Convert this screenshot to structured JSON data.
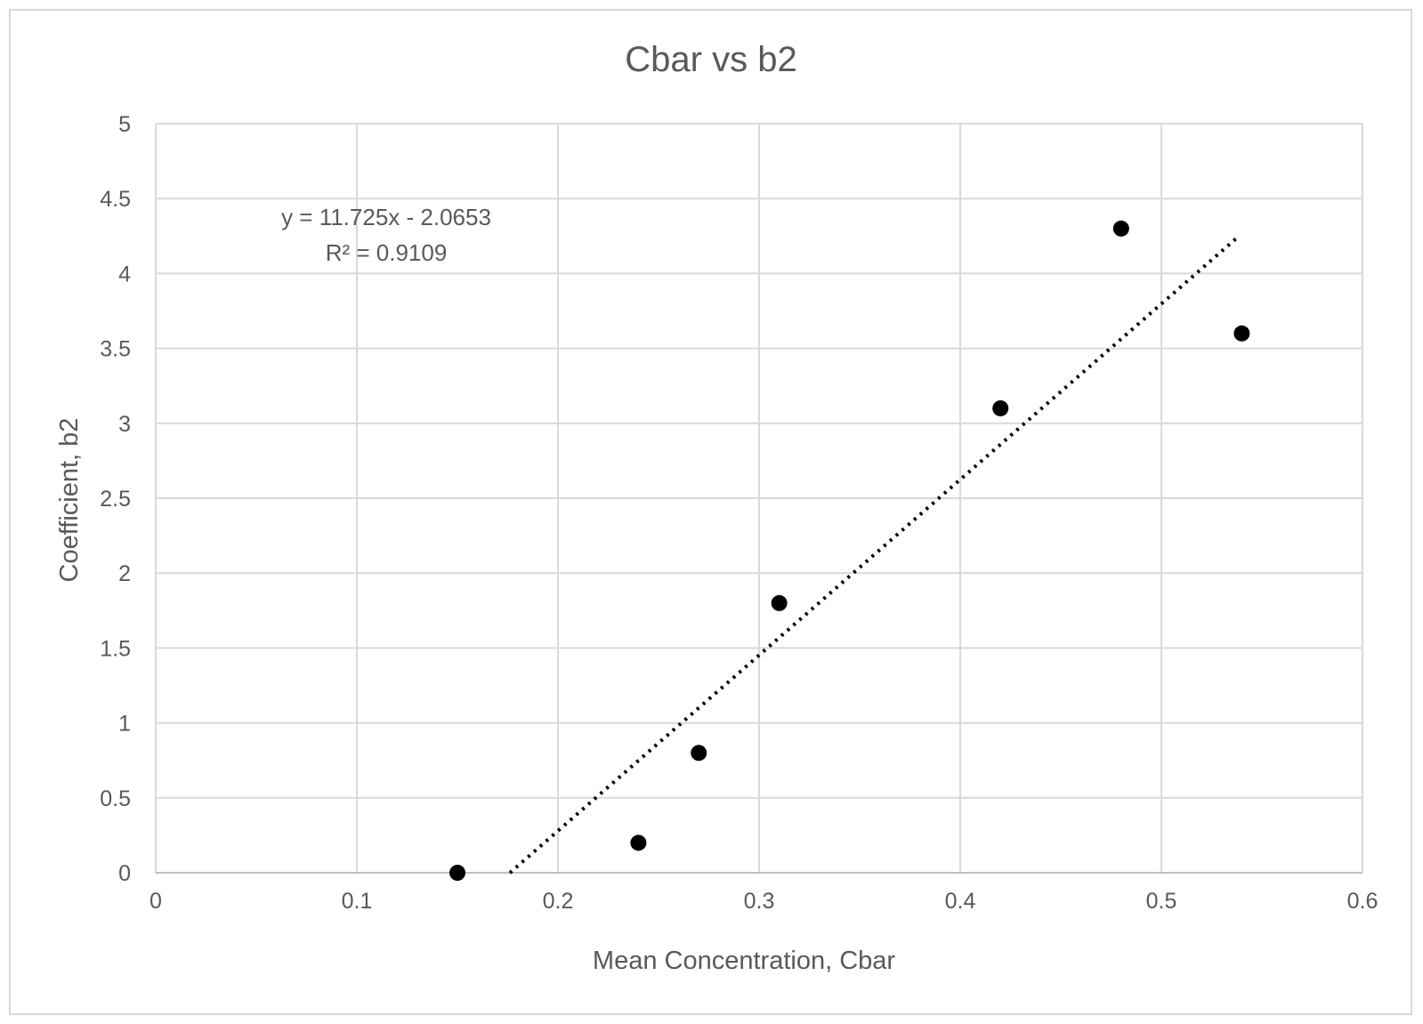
{
  "chart_data": {
    "type": "scatter",
    "title": "Cbar vs b2",
    "xlabel": "Mean Concentration, Cbar",
    "ylabel": "Coefficient, b2",
    "xlim": [
      0,
      0.6
    ],
    "ylim": [
      0,
      5
    ],
    "xticks": [
      "0",
      "0.1",
      "0.2",
      "0.3",
      "0.4",
      "0.5",
      "0.6"
    ],
    "yticks": [
      "0",
      "0.5",
      "1",
      "1.5",
      "2",
      "2.5",
      "3",
      "3.5",
      "4",
      "4.5",
      "5"
    ],
    "grid": true,
    "legend": "none",
    "series": [
      {
        "x": [
          0.15,
          0.24,
          0.27,
          0.31,
          0.42,
          0.48,
          0.54
        ],
        "y": [
          0.0,
          0.2,
          0.8,
          1.8,
          3.1,
          4.3,
          3.6
        ],
        "marker_color": "#000000"
      }
    ],
    "trendline": {
      "type": "linear",
      "style": "dotted",
      "color": "#000000",
      "slope": 11.725,
      "intercept": -2.0653,
      "x_range": [
        0.1761,
        0.537
      ],
      "equation": "y = 11.725x - 2.0653",
      "r_squared": "R² = 0.9109"
    },
    "colors": {
      "grid": "#d9d9d9",
      "text": "#595959",
      "border": "#d9d9d9"
    }
  }
}
